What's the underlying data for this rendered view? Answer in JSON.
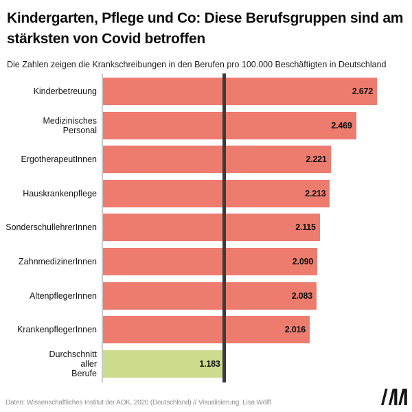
{
  "header": {
    "title": "Kindergarten, Pflege und Co: Diese Berufsgruppen sind am stärksten von Covid betroffen",
    "subtitle": "Die Zahlen zeigen die Krankschreibungen in den Berufen pro 100.000 Beschäftigten in Deutschland"
  },
  "chart_data": {
    "type": "bar",
    "orientation": "horizontal",
    "title": "Kindergarten, Pflege und Co: Diese Berufsgruppen sind am stärksten von Covid betroffen",
    "subtitle": "Die Zahlen zeigen die Krankschreibungen in den Berufen pro 100.000 Beschäftigten in Deutschland",
    "categories": [
      "Kinderbetreuung",
      "Medizinisches Personal",
      "ErgotherapeutInnen",
      "Hauskrankenpflege",
      "SonderschullehrerInnen",
      "ZahnmedizinerInnen",
      "AltenpflegerInnen",
      "KrankenpflegerInnen",
      "Durchschnitt aller Berufe"
    ],
    "labels_display": [
      "Kinderbetreuung",
      "Medizinisches\nPersonal",
      "ErgotherapeutInnen",
      "Hauskrankenpflege",
      "SonderschullehrerInnen",
      "ZahnmedizinerInnen",
      "AltenpflegerInnen",
      "KrankenpflegerInnen",
      "Durchschnitt\naller\nBerufe"
    ],
    "values": [
      2672,
      2469,
      2221,
      2213,
      2115,
      2090,
      2083,
      2016,
      1183
    ],
    "value_labels": [
      "2.672",
      "2.469",
      "2.221",
      "2.213",
      "2.115",
      "2.090",
      "2.083",
      "2.016",
      "1.183"
    ],
    "xmax": 2672,
    "xlim": [
      0,
      2672
    ],
    "grid": false,
    "legend": false,
    "bar_color": "#ED7C6E",
    "highlight_color": "#CCDC8D",
    "highlight_index": 8,
    "value_label_color": "#101010",
    "axis_line_color": "#C9C9C9",
    "reference_line": {
      "value": 1183,
      "color": "#3B3B3B"
    }
  },
  "footer": {
    "source": "Daten: Wissenschaftliches Institut der AOK, 2020 (Deutschland) // Visualisierung: Lisa Wölfl",
    "logo_icon": "moment-logo",
    "logo_color": "#161616"
  }
}
